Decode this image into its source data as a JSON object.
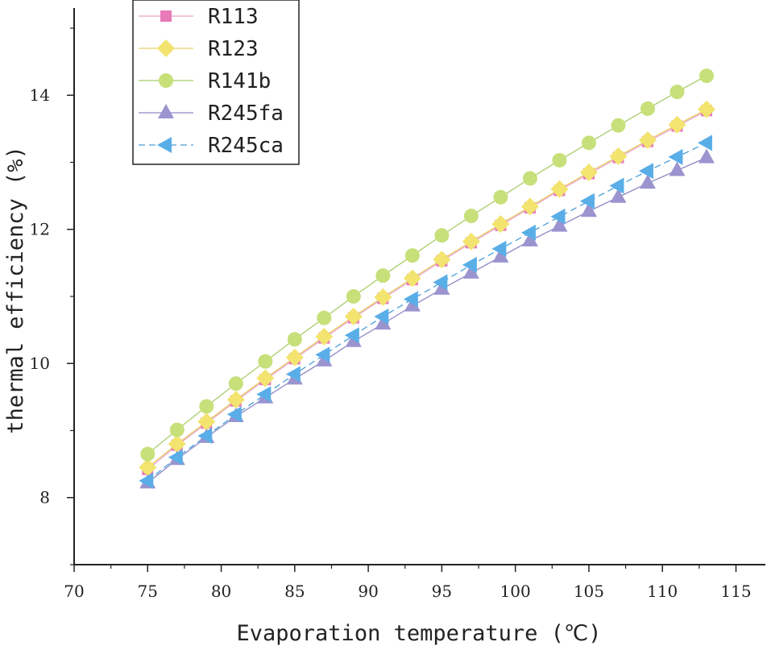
{
  "chart_data": {
    "type": "line",
    "title": "",
    "xlabel": "Evaporation temperature (℃)",
    "ylabel": "thermal efficiency (%)",
    "xlim": [
      70,
      117
    ],
    "ylim": [
      7,
      15.3
    ],
    "x_ticks": [
      70,
      75,
      80,
      85,
      90,
      95,
      100,
      105,
      110,
      115
    ],
    "y_ticks": [
      8,
      10,
      12,
      14
    ],
    "x_tick_labels": [
      "70",
      "75",
      "80",
      "85",
      "90",
      "95",
      "100",
      "105",
      "110",
      "115"
    ],
    "y_tick_labels": [
      "8",
      "10",
      "12",
      "14"
    ],
    "grid": false,
    "legend_position": "top-left",
    "x": [
      75,
      77,
      79,
      81,
      83,
      85,
      87,
      89,
      91,
      93,
      95,
      97,
      99,
      101,
      103,
      105,
      107,
      109,
      111,
      113
    ],
    "series": [
      {
        "name": "R113",
        "marker": "square",
        "color": "#e87ab8",
        "line_color": "#e8a0c8",
        "dashed": false,
        "values": [
          8.42,
          8.78,
          9.11,
          9.44,
          9.76,
          10.07,
          10.38,
          10.68,
          10.97,
          11.25,
          11.53,
          11.8,
          12.06,
          12.32,
          12.58,
          12.83,
          13.07,
          13.31,
          13.54,
          13.77
        ]
      },
      {
        "name": "R123",
        "marker": "diamond",
        "color": "#f2e46e",
        "line_color": "#ead16a",
        "dashed": false,
        "values": [
          8.45,
          8.8,
          9.13,
          9.46,
          9.78,
          10.09,
          10.4,
          10.7,
          10.99,
          11.27,
          11.55,
          11.82,
          12.08,
          12.34,
          12.6,
          12.85,
          13.09,
          13.33,
          13.56,
          13.79
        ]
      },
      {
        "name": "R141b",
        "marker": "circle",
        "color": "#c7e07a",
        "line_color": "#a9cc6c",
        "dashed": false,
        "values": [
          8.65,
          9.01,
          9.36,
          9.7,
          10.03,
          10.36,
          10.68,
          11.0,
          11.31,
          11.61,
          11.91,
          12.2,
          12.48,
          12.76,
          13.03,
          13.29,
          13.55,
          13.8,
          14.05,
          14.29
        ]
      },
      {
        "name": "R245fa",
        "marker": "triangle-up",
        "color": "#9a94cf",
        "line_color": "#8f88c4",
        "dashed": false,
        "values": [
          8.22,
          8.57,
          8.9,
          9.21,
          9.49,
          9.77,
          10.04,
          10.33,
          10.59,
          10.86,
          11.11,
          11.35,
          11.59,
          11.83,
          12.05,
          12.27,
          12.48,
          12.69,
          12.88,
          13.07
        ]
      },
      {
        "name": "R245ca",
        "marker": "triangle-left",
        "color": "#5aaee8",
        "line_color": "#4a9fd8",
        "dashed": true,
        "values": [
          8.25,
          8.6,
          8.92,
          9.24,
          9.54,
          9.84,
          10.13,
          10.42,
          10.7,
          10.96,
          11.21,
          11.47,
          11.71,
          11.95,
          12.19,
          12.42,
          12.65,
          12.87,
          13.08,
          13.29
        ]
      }
    ]
  }
}
